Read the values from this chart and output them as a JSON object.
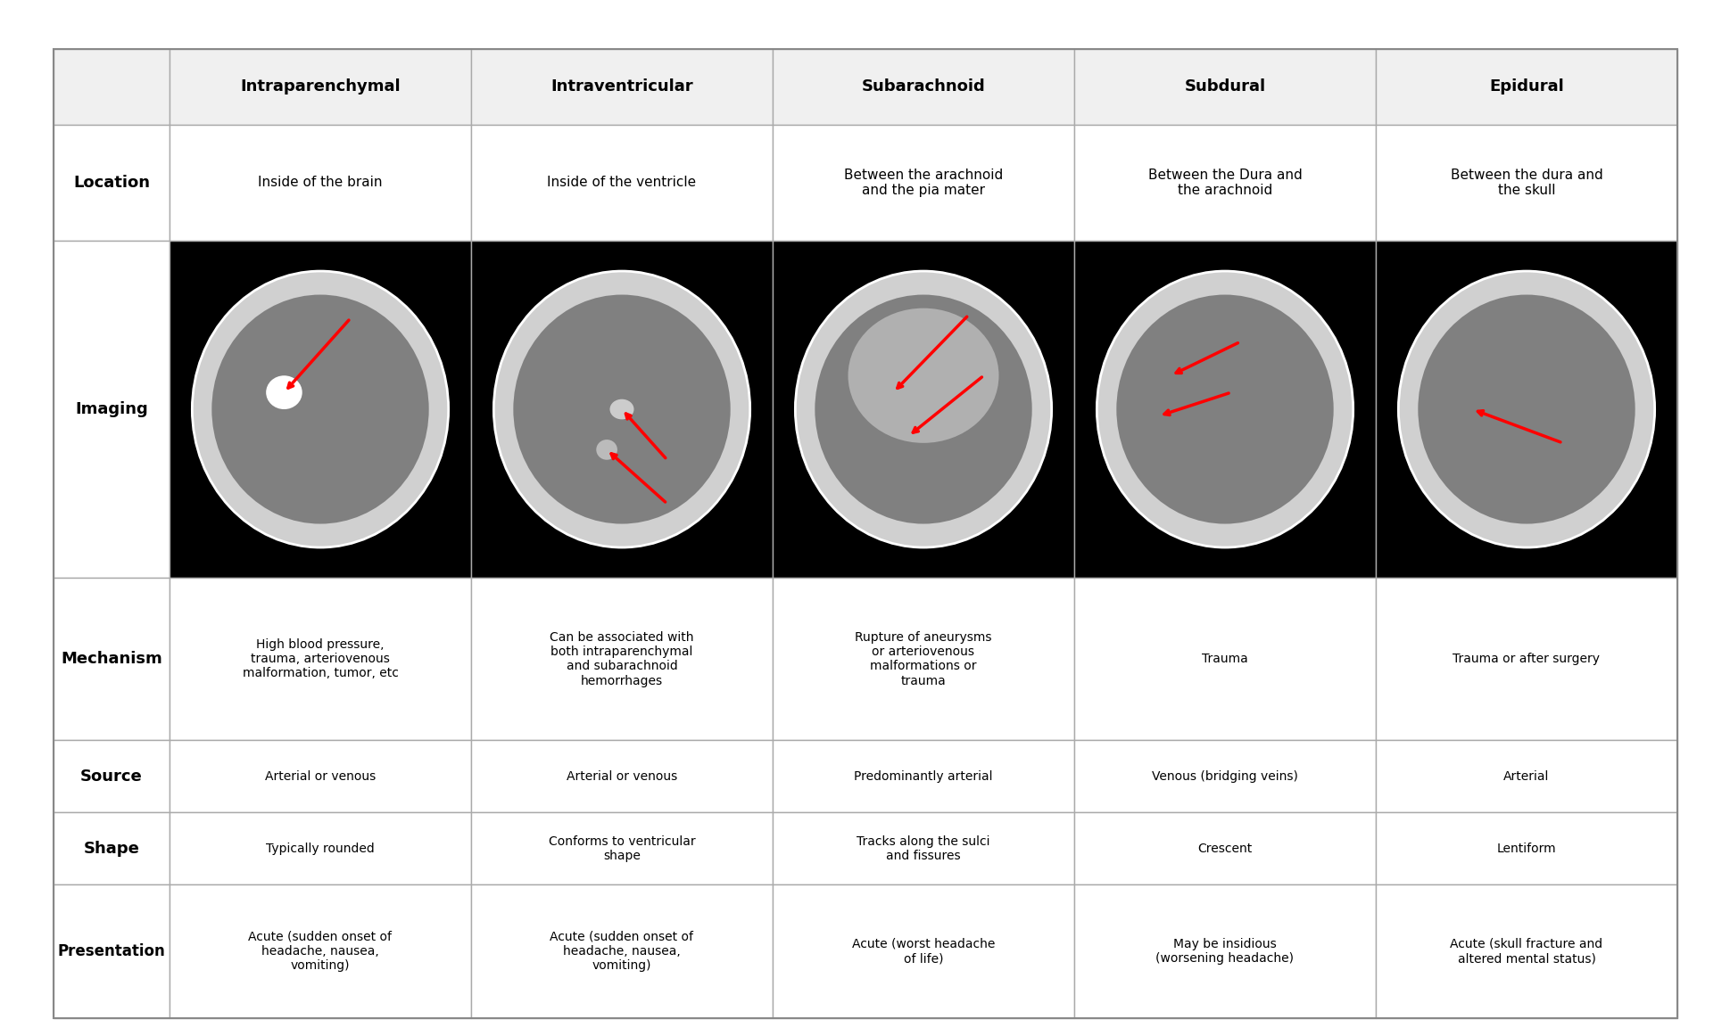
{
  "col_headers": [
    "",
    "Intraparenchymal",
    "Intraventricular",
    "Subarachnoid",
    "Subdural",
    "Epidural"
  ],
  "row_headers": [
    "Location",
    "Imaging",
    "Mechanism",
    "Source",
    "Shape",
    "Presentation"
  ],
  "location_row": [
    "Inside of the brain",
    "Inside of the ventricle",
    "Between the arachnoid\nand the pia mater",
    "Between the Dura and\nthe arachnoid",
    "Between the dura and\nthe skull"
  ],
  "mechanism_row": [
    "High blood pressure,\ntrauma, arteriovenous\nmalformation, tumor, etc",
    "Can be associated with\nboth intraparenchymal\nand subarachnoid\nhemorrhages",
    "Rupture of aneurysms\nor arteriovenous\nmalformations or\ntrauma",
    "Trauma",
    "Trauma or after surgery"
  ],
  "source_row": [
    "Arterial or venous",
    "Arterial or venous",
    "Predominantly arterial",
    "Venous (bridging veins)",
    "Arterial"
  ],
  "shape_row": [
    "Typically rounded",
    "Conforms to ventricular\nshape",
    "Tracks along the sulci\nand fissures",
    "Crescent",
    "Lentiform"
  ],
  "presentation_row": [
    "Acute (sudden onset of\nheadache, nausea,\nvomiting)",
    "Acute (sudden onset of\nheadache, nausea,\nvomiting)",
    "Acute (worst headache\nof life)",
    "May be insidious\n(worsening headache)",
    "Acute (skull fracture and\naltered mental status)"
  ],
  "bg_color": "#ffffff",
  "header_bg": "#f0f0f0",
  "row_header_bg": "#ffffff",
  "cell_bg": "#ffffff",
  "image_bg": "#000000",
  "border_color": "#aaaaaa",
  "text_color": "#000000",
  "header_bold": true
}
